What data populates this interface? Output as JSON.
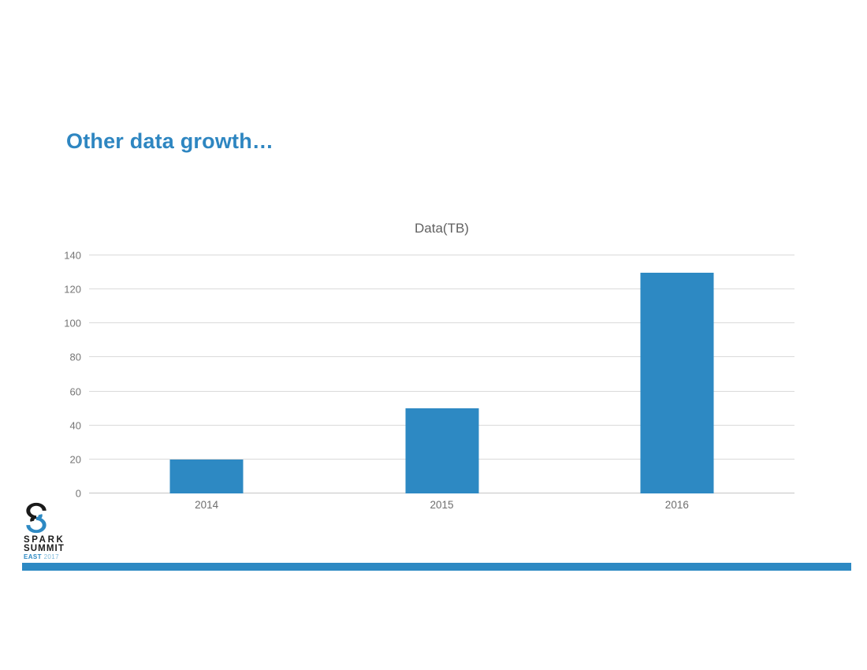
{
  "slide": {
    "title": "Other data growth…",
    "accent_color": "#2e86c1",
    "background_color": "#ffffff"
  },
  "chart_data": {
    "type": "bar",
    "title": "Data(TB)",
    "categories": [
      "2014",
      "2015",
      "2016"
    ],
    "values": [
      20,
      50,
      130
    ],
    "xlabel": "",
    "ylabel": "",
    "ylim": [
      0,
      140
    ],
    "ytick_step": 20,
    "yticks": [
      0,
      20,
      40,
      60,
      80,
      100,
      120,
      140
    ],
    "grid": true,
    "legend_position": "none",
    "bar_color": "#2d89c3",
    "gridline_color": "#dadada",
    "axis_label_color": "#757575"
  },
  "footer": {
    "logo": {
      "icon": "spark-summit-swirl-icon",
      "line1": "SPARK",
      "line2": "SUMMIT",
      "line3_east": "EAST",
      "line3_year": "2017",
      "black": "#1a1a1a",
      "blue": "#2d89c3"
    },
    "accent_bar_color": "#2d89c3"
  }
}
